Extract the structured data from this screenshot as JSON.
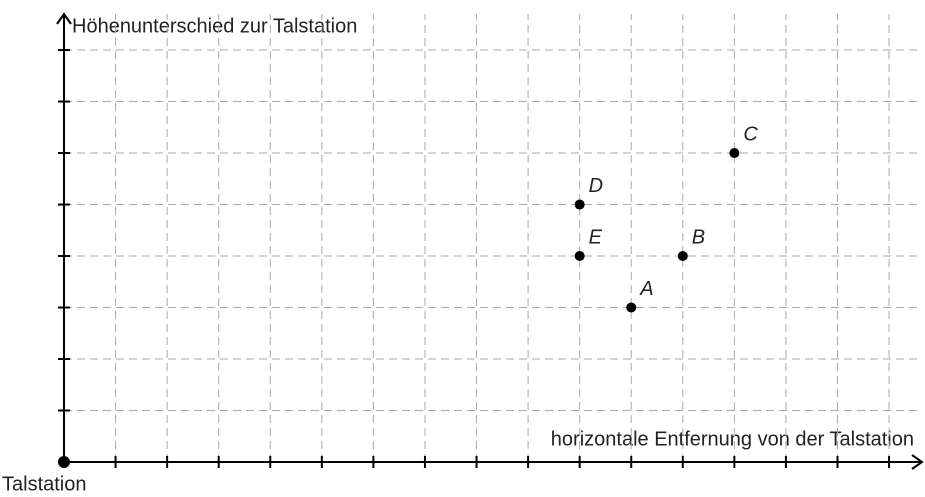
{
  "chart_data": {
    "type": "scatter",
    "y_label": "Höhenunterschied zur Talstation",
    "x_label": "horizontale Entfernung von der Talstation",
    "origin_label": "Talstation",
    "labels": [
      "A",
      "B",
      "C",
      "D",
      "E"
    ],
    "x": [
      11,
      12,
      13,
      10,
      10
    ],
    "values": [
      3,
      4,
      6,
      5,
      4
    ],
    "color": "#000000",
    "xlim": [
      0,
      16.6
    ],
    "ylim": [
      0,
      8.7
    ],
    "xticks": [
      1,
      2,
      3,
      4,
      5,
      6,
      7,
      8,
      9,
      10,
      11,
      12,
      13,
      14,
      15,
      16
    ],
    "yticks": [
      1,
      2,
      3,
      4,
      5,
      6,
      7,
      8
    ],
    "grid": true
  }
}
